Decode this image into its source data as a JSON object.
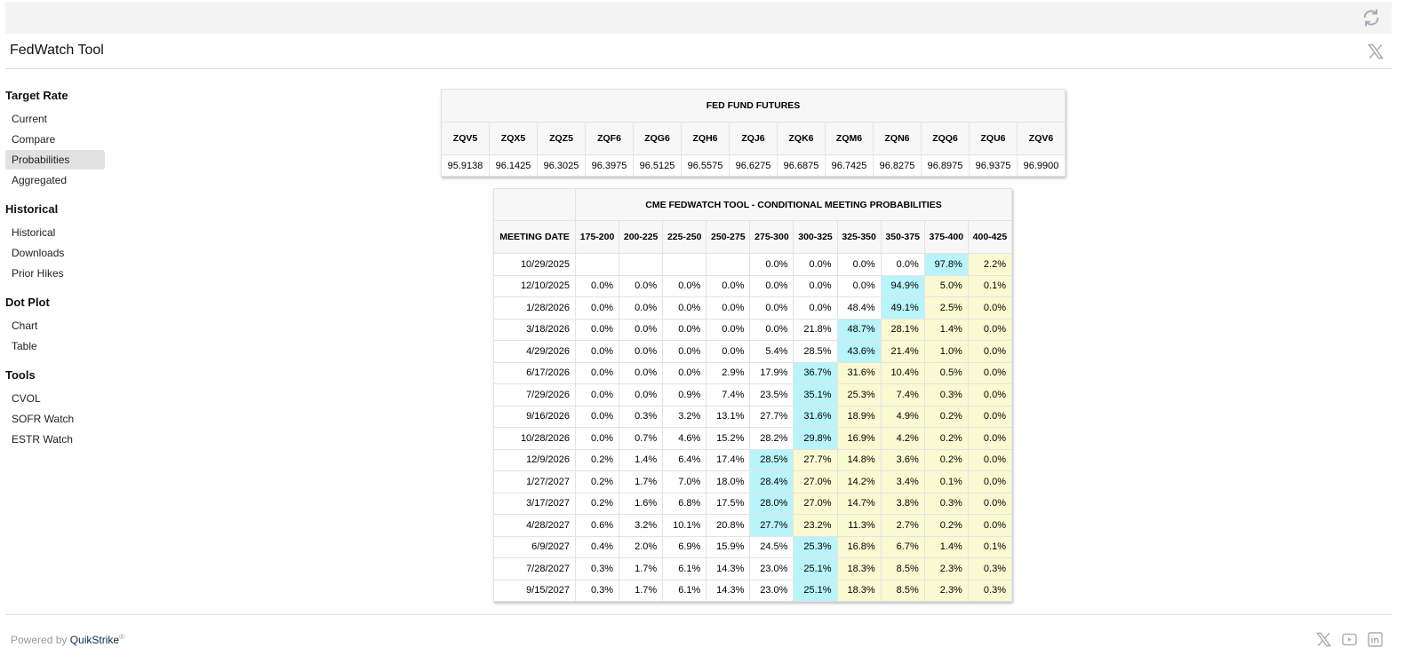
{
  "header": {
    "title": "FedWatch Tool",
    "refresh_icon": "refresh-icon",
    "share_icon": "x-logo-icon"
  },
  "sidebar": [
    {
      "heading": "Target Rate",
      "items": [
        {
          "label": "Current"
        },
        {
          "label": "Compare"
        },
        {
          "label": "Probabilities",
          "active": true
        },
        {
          "label": "Aggregated"
        }
      ]
    },
    {
      "heading": "Historical",
      "items": [
        {
          "label": "Historical"
        },
        {
          "label": "Downloads"
        },
        {
          "label": "Prior Hikes"
        }
      ]
    },
    {
      "heading": "Dot Plot",
      "items": [
        {
          "label": "Chart"
        },
        {
          "label": "Table"
        }
      ]
    },
    {
      "heading": "Tools",
      "items": [
        {
          "label": "CVOL"
        },
        {
          "label": "SOFR Watch"
        },
        {
          "label": "ESTR Watch"
        }
      ]
    }
  ],
  "futures": {
    "title": "FED FUND FUTURES",
    "codes": [
      "ZQV5",
      "ZQX5",
      "ZQZ5",
      "ZQF6",
      "ZQG6",
      "ZQH6",
      "ZQJ6",
      "ZQK6",
      "ZQM6",
      "ZQN6",
      "ZQQ6",
      "ZQU6",
      "ZQV6"
    ],
    "prices": [
      "95.9138",
      "96.1425",
      "96.3025",
      "96.3975",
      "96.5125",
      "96.5575",
      "96.6275",
      "96.6875",
      "96.7425",
      "96.8275",
      "96.8975",
      "96.9375",
      "96.9900"
    ]
  },
  "probabilities": {
    "title": "CME FEDWATCH TOOL - CONDITIONAL MEETING PROBABILITIES",
    "date_header": "MEETING DATE",
    "ranges": [
      "175-200",
      "200-225",
      "225-250",
      "250-275",
      "275-300",
      "300-325",
      "325-350",
      "350-375",
      "375-400",
      "400-425"
    ],
    "colors": {
      "max": "#b9f4fb",
      "above": "#fafad2"
    },
    "rows": [
      {
        "date": "10/29/2025",
        "values": [
          "",
          "",
          "",
          "",
          "0.0%",
          "0.0%",
          "0.0%",
          "0.0%",
          "97.8%",
          "2.2%"
        ]
      },
      {
        "date": "12/10/2025",
        "values": [
          "0.0%",
          "0.0%",
          "0.0%",
          "0.0%",
          "0.0%",
          "0.0%",
          "0.0%",
          "94.9%",
          "5.0%",
          "0.1%"
        ]
      },
      {
        "date": "1/28/2026",
        "values": [
          "0.0%",
          "0.0%",
          "0.0%",
          "0.0%",
          "0.0%",
          "0.0%",
          "48.4%",
          "49.1%",
          "2.5%",
          "0.0%"
        ]
      },
      {
        "date": "3/18/2026",
        "values": [
          "0.0%",
          "0.0%",
          "0.0%",
          "0.0%",
          "0.0%",
          "21.8%",
          "48.7%",
          "28.1%",
          "1.4%",
          "0.0%"
        ]
      },
      {
        "date": "4/29/2026",
        "values": [
          "0.0%",
          "0.0%",
          "0.0%",
          "0.0%",
          "5.4%",
          "28.5%",
          "43.6%",
          "21.4%",
          "1.0%",
          "0.0%"
        ]
      },
      {
        "date": "6/17/2026",
        "values": [
          "0.0%",
          "0.0%",
          "0.0%",
          "2.9%",
          "17.9%",
          "36.7%",
          "31.6%",
          "10.4%",
          "0.5%",
          "0.0%"
        ]
      },
      {
        "date": "7/29/2026",
        "values": [
          "0.0%",
          "0.0%",
          "0.9%",
          "7.4%",
          "23.5%",
          "35.1%",
          "25.3%",
          "7.4%",
          "0.3%",
          "0.0%"
        ]
      },
      {
        "date": "9/16/2026",
        "values": [
          "0.0%",
          "0.3%",
          "3.2%",
          "13.1%",
          "27.7%",
          "31.6%",
          "18.9%",
          "4.9%",
          "0.2%",
          "0.0%"
        ]
      },
      {
        "date": "10/28/2026",
        "values": [
          "0.0%",
          "0.7%",
          "4.6%",
          "15.2%",
          "28.2%",
          "29.8%",
          "16.9%",
          "4.2%",
          "0.2%",
          "0.0%"
        ]
      },
      {
        "date": "12/9/2026",
        "values": [
          "0.2%",
          "1.4%",
          "6.4%",
          "17.4%",
          "28.5%",
          "27.7%",
          "14.8%",
          "3.6%",
          "0.2%",
          "0.0%"
        ]
      },
      {
        "date": "1/27/2027",
        "values": [
          "0.2%",
          "1.7%",
          "7.0%",
          "18.0%",
          "28.4%",
          "27.0%",
          "14.2%",
          "3.4%",
          "0.1%",
          "0.0%"
        ]
      },
      {
        "date": "3/17/2027",
        "values": [
          "0.2%",
          "1.6%",
          "6.8%",
          "17.5%",
          "28.0%",
          "27.0%",
          "14.7%",
          "3.8%",
          "0.3%",
          "0.0%"
        ]
      },
      {
        "date": "4/28/2027",
        "values": [
          "0.6%",
          "3.2%",
          "10.1%",
          "20.8%",
          "27.7%",
          "23.2%",
          "11.3%",
          "2.7%",
          "0.2%",
          "0.0%"
        ]
      },
      {
        "date": "6/9/2027",
        "values": [
          "0.4%",
          "2.0%",
          "6.9%",
          "15.9%",
          "24.5%",
          "25.3%",
          "16.8%",
          "6.7%",
          "1.4%",
          "0.1%"
        ]
      },
      {
        "date": "7/28/2027",
        "values": [
          "0.3%",
          "1.7%",
          "6.1%",
          "14.3%",
          "23.0%",
          "25.1%",
          "18.3%",
          "8.5%",
          "2.3%",
          "0.3%"
        ]
      },
      {
        "date": "9/15/2027",
        "values": [
          "0.3%",
          "1.7%",
          "6.1%",
          "14.3%",
          "23.0%",
          "25.1%",
          "18.3%",
          "8.5%",
          "2.3%",
          "0.3%"
        ]
      }
    ]
  },
  "footer": {
    "powered_by": "Powered by ",
    "brand": "QuikStrike",
    "reg": "®",
    "social_icons": [
      "x-logo-icon",
      "youtube-icon",
      "linkedin-icon"
    ]
  }
}
